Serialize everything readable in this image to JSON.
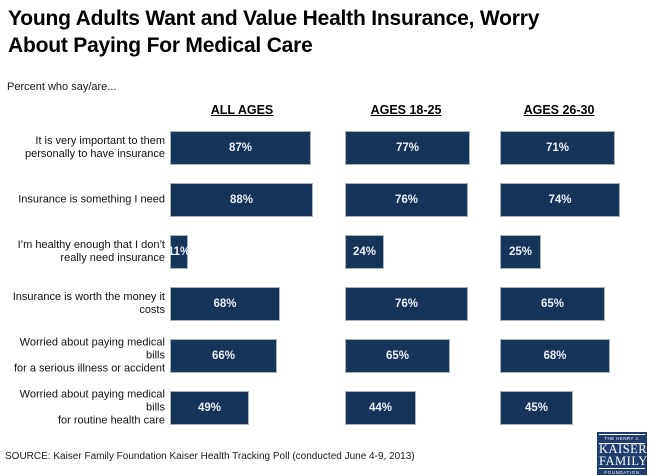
{
  "title": "Young Adults Want and Value Health Insurance, Worry\nAbout Paying For Medical Care",
  "subtitle": "Percent who say/are...",
  "source": "SOURCE: Kaiser Family Foundation Kaiser Health Tracking Poll (conducted June 4-9, 2013)",
  "colors": {
    "bar": "#14345a",
    "bar_border": "#aab3bc",
    "bar_label": "#eaf0f7",
    "logo_bg": "#1d3e6e",
    "text": "#000000"
  },
  "logo": {
    "line1": "THE HENRY J.",
    "line2": "KAISER",
    "line3": "FAMILY",
    "line4": "FOUNDATION"
  },
  "chart_data": {
    "type": "bar",
    "orientation": "horizontal",
    "unit": "%",
    "xlim": [
      0,
      100
    ],
    "grid": false,
    "value_labels": "inside-center",
    "title": "Young Adults Want and Value Health Insurance, Worry About Paying For Medical Care",
    "subtitle": "Percent who say/are...",
    "group_headers": [
      "ALL AGES",
      "AGES 18-25",
      "AGES 26-30"
    ],
    "categories": [
      "It is very important to them\npersonally to have insurance",
      "Insurance is something I need",
      "I’m healthy enough that I don’t\nreally need insurance",
      "Insurance is worth the money it\ncosts",
      "Worried about paying medical bills\nfor a serious illness or accident",
      "Worried about paying medical bills\nfor routine health care"
    ],
    "series": [
      {
        "name": "ALL AGES",
        "values": [
          87,
          88,
          11,
          68,
          66,
          49
        ]
      },
      {
        "name": "AGES 18-25",
        "values": [
          77,
          76,
          24,
          76,
          65,
          44
        ]
      },
      {
        "name": "AGES 26-30",
        "values": [
          71,
          74,
          25,
          65,
          68,
          45
        ]
      }
    ]
  }
}
